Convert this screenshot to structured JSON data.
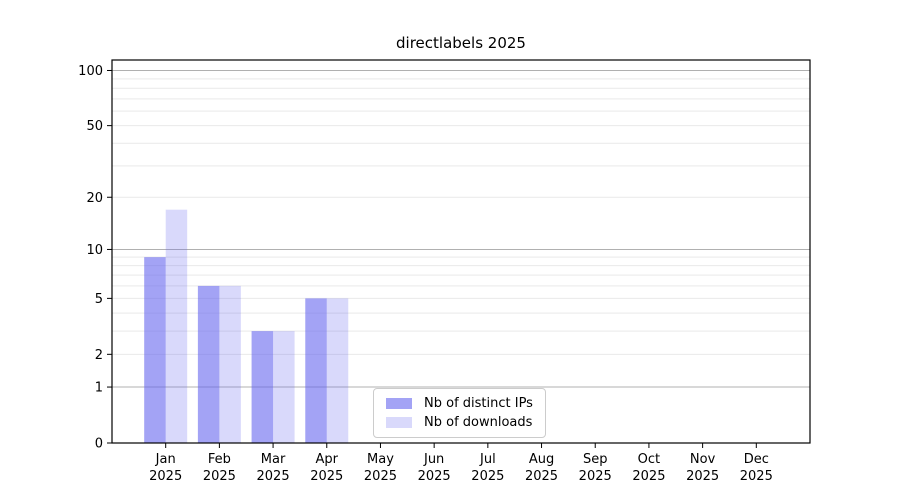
{
  "chart_data": {
    "type": "bar",
    "title": "directlabels 2025",
    "categories": [
      "Jan",
      "Feb",
      "Mar",
      "Apr",
      "May",
      "Jun",
      "Jul",
      "Aug",
      "Sep",
      "Oct",
      "Nov",
      "Dec"
    ],
    "year_label": "2025",
    "series": [
      {
        "name": "Nb of distinct IPs",
        "color": "#6666ee",
        "opacity": 0.6,
        "legend_swatch_color": "#a3a3f5",
        "values": [
          9,
          6,
          3,
          5,
          0,
          0,
          0,
          0,
          0,
          0,
          0,
          0
        ]
      },
      {
        "name": "Nb of downloads",
        "color": "#6666ee",
        "opacity": 0.25,
        "legend_swatch_color": "#d9d9fb",
        "values": [
          17,
          6,
          3,
          5,
          0,
          0,
          0,
          0,
          0,
          0,
          0,
          0
        ]
      }
    ],
    "yscale": "log1p",
    "ylim": [
      0,
      114
    ],
    "yticks": [
      0,
      1,
      2,
      5,
      10,
      20,
      50,
      100
    ],
    "major_gridlines": [
      1,
      10,
      100
    ],
    "minor_gridlines": [
      2,
      3,
      4,
      5,
      6,
      7,
      8,
      9,
      20,
      30,
      40,
      50,
      60,
      70,
      80,
      90
    ],
    "grid_major_color": "#b0b0b0",
    "grid_minor_color": "#e9e9e9",
    "axis_color": "#000000",
    "legend_position": "lower center inside"
  }
}
